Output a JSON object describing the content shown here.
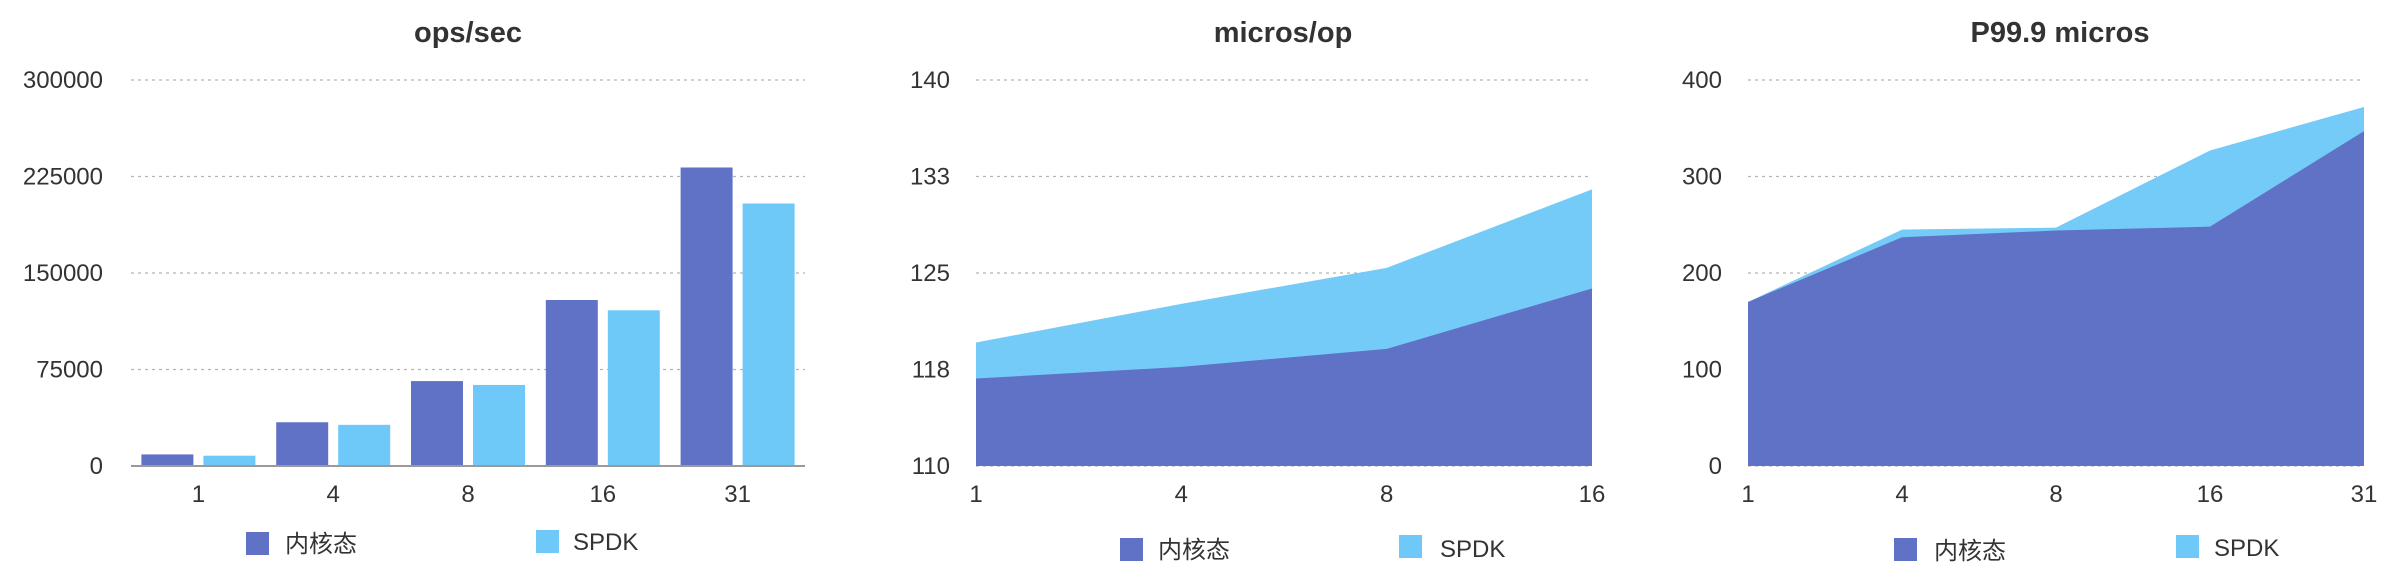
{
  "colors": {
    "kernel": "#5f72c6",
    "spdk": "#6ec8f8"
  },
  "chart_data": [
    {
      "type": "bar",
      "title": "ops/sec",
      "categories": [
        "1",
        "4",
        "8",
        "16",
        "31"
      ],
      "ylim": [
        0,
        300000
      ],
      "yticks": [
        "0",
        "75000",
        "150000",
        "225000",
        "300000"
      ],
      "yticks_values": [
        0,
        75000,
        150000,
        225000,
        300000
      ],
      "grid": true,
      "legend_position": "bottom",
      "series": [
        {
          "name": "内核态",
          "values": [
            9000,
            34000,
            66000,
            129000,
            232000
          ]
        },
        {
          "name": "SPDK",
          "values": [
            8000,
            32000,
            63000,
            121000,
            204000
          ]
        }
      ]
    },
    {
      "type": "area",
      "title": "micros/op",
      "categories": [
        "1",
        "4",
        "8",
        "16"
      ],
      "ylim": [
        110,
        140
      ],
      "yticks": [
        "110",
        "118",
        "125",
        "133",
        "140"
      ],
      "yticks_values": [
        110,
        117.5,
        125,
        132.5,
        140
      ],
      "grid": true,
      "legend_position": "bottom",
      "series": [
        {
          "name": "内核态",
          "values": [
            116.8,
            117.7,
            119.1,
            123.8
          ]
        },
        {
          "name": "SPDK",
          "values": [
            119.6,
            122.6,
            125.4,
            131.5
          ]
        }
      ]
    },
    {
      "type": "area",
      "title": "P99.9 micros",
      "categories": [
        "1",
        "4",
        "8",
        "16",
        "31"
      ],
      "ylim": [
        0,
        400
      ],
      "yticks": [
        "0",
        "100",
        "200",
        "300",
        "400"
      ],
      "yticks_values": [
        0,
        100,
        200,
        300,
        400
      ],
      "grid": true,
      "legend_position": "bottom",
      "series": [
        {
          "name": "内核态",
          "values": [
            170,
            237,
            244,
            248,
            347
          ]
        },
        {
          "name": "SPDK",
          "values": [
            170,
            245,
            247,
            327,
            372
          ]
        }
      ]
    }
  ]
}
